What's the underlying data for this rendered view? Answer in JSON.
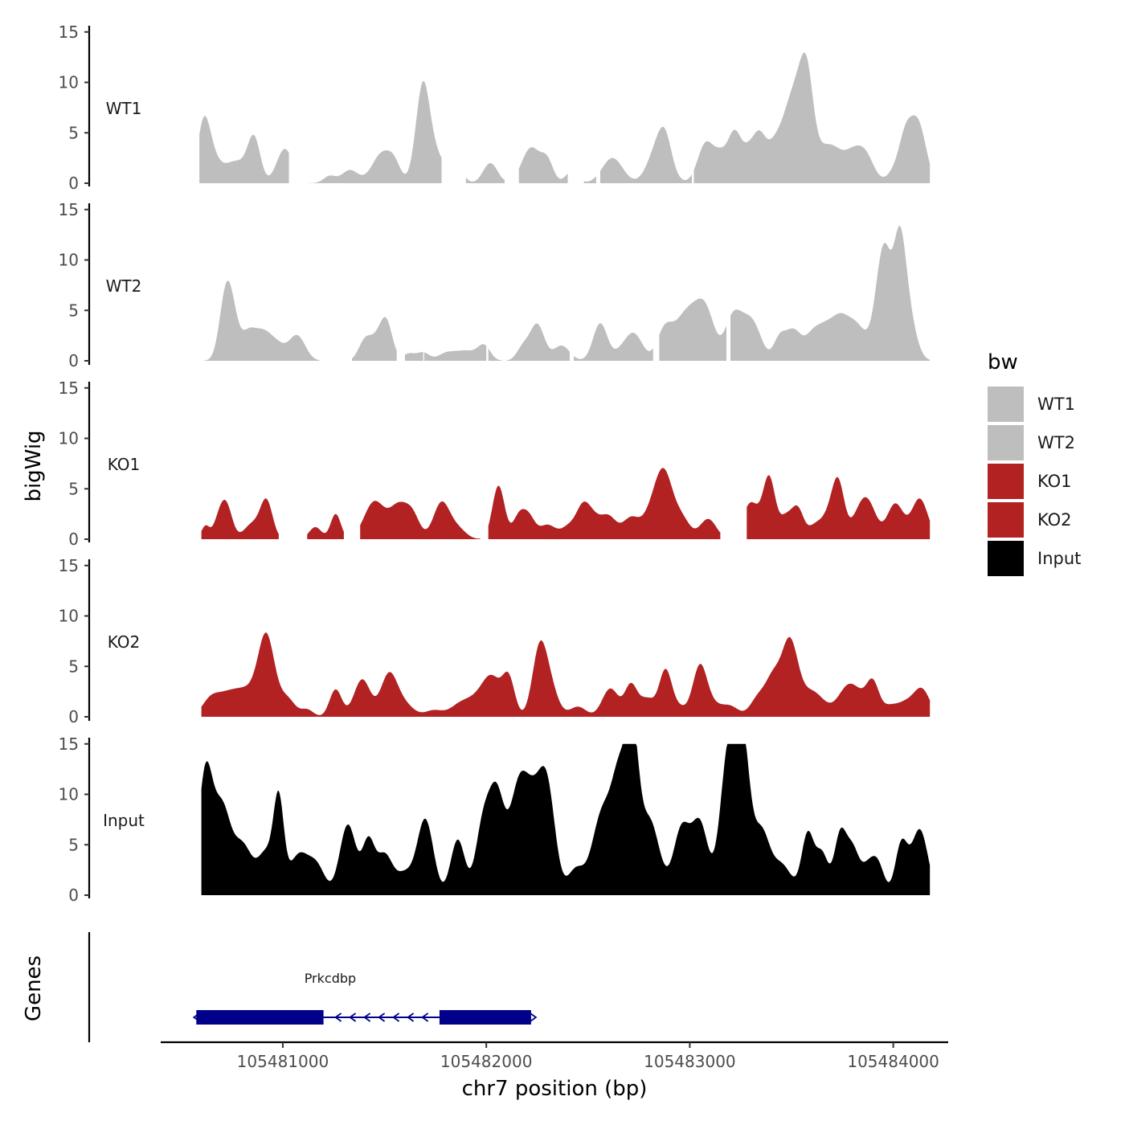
{
  "chart_data": {
    "type": "area",
    "xlabel": "chr7 position (bp)",
    "ylabel": "bigWig",
    "genes_label": "Genes",
    "xlim": [
      105480400,
      105484270
    ],
    "ylim": [
      0,
      15
    ],
    "x_ticks": [
      105481000,
      105482000,
      105483000,
      105484000
    ],
    "x_tick_labels": [
      "105481000",
      "105482000",
      "105483000",
      "105484000"
    ],
    "y_ticks": [
      0,
      5,
      10,
      15
    ],
    "y_tick_labels": [
      "0",
      "5",
      "10",
      "15"
    ],
    "legend": {
      "title": "bw",
      "items": [
        {
          "label": "WT1",
          "color": "#bebebe"
        },
        {
          "label": "WT2",
          "color": "#bebebe"
        },
        {
          "label": "KO1",
          "color": "#b22222"
        },
        {
          "label": "KO2",
          "color": "#b22222"
        },
        {
          "label": "Input",
          "color": "#000000"
        }
      ]
    },
    "series": [
      {
        "name": "WT1",
        "color": "#bebebe",
        "x_start": 105480590,
        "x_end": 105484180,
        "peaks": [
          [
            105480610,
            5,
            30
          ],
          [
            105480650,
            2.5,
            40
          ],
          [
            105480760,
            2,
            50
          ],
          [
            105480840,
            1,
            40
          ],
          [
            105480860,
            3.6,
            30
          ],
          [
            105481010,
            3.4,
            40
          ],
          [
            105481230,
            0.7,
            30
          ],
          [
            105481330,
            1.3,
            40
          ],
          [
            105481490,
            3,
            50
          ],
          [
            105481550,
            1.2,
            30
          ],
          [
            105481690,
            10,
            35
          ],
          [
            105481760,
            2,
            30
          ],
          [
            105481840,
            2.5,
            35
          ],
          [
            105482020,
            2,
            35
          ],
          [
            105482220,
            3.5,
            45
          ],
          [
            105482300,
            2,
            30
          ],
          [
            105482420,
            1.2,
            30
          ],
          [
            105482620,
            2.5,
            50
          ],
          [
            105482850,
            4,
            50
          ],
          [
            105482880,
            2,
            30
          ],
          [
            105483080,
            4,
            40
          ],
          [
            105483150,
            2,
            30
          ],
          [
            105483220,
            5,
            35
          ],
          [
            105483290,
            2.5,
            30
          ],
          [
            105483340,
            3.5,
            30
          ],
          [
            105483420,
            4,
            50
          ],
          [
            105483500,
            6,
            40
          ],
          [
            105483550,
            5.5,
            35
          ],
          [
            105483580,
            6,
            30
          ],
          [
            105483640,
            3,
            50
          ],
          [
            105483710,
            2,
            40
          ],
          [
            105483800,
            3,
            50
          ],
          [
            105483870,
            2,
            40
          ],
          [
            105484020,
            1.5,
            40
          ],
          [
            105484060,
            3,
            30
          ],
          [
            105484120,
            6,
            40
          ]
        ],
        "gaps": [
          [
            105481030,
            105481130
          ],
          [
            105481780,
            105481900
          ],
          [
            105482090,
            105482160
          ],
          [
            105482400,
            105482470
          ],
          [
            105482470,
            105482480
          ],
          [
            105482540,
            105482560
          ],
          [
            105483010,
            105483020
          ]
        ]
      },
      {
        "name": "WT2",
        "color": "#bebebe",
        "x_start": 105480600,
        "x_end": 105484180,
        "peaks": [
          [
            105480710,
            3,
            30
          ],
          [
            105480730,
            4,
            30
          ],
          [
            105480760,
            2.5,
            30
          ],
          [
            105480830,
            2.5,
            35
          ],
          [
            105480900,
            2.5,
            40
          ],
          [
            105480970,
            1.5,
            40
          ],
          [
            105481070,
            2.5,
            40
          ],
          [
            105481400,
            1.6,
            30
          ],
          [
            105481460,
            2,
            40
          ],
          [
            105481510,
            3.3,
            30
          ],
          [
            105481620,
            0.7,
            30
          ],
          [
            105481690,
            0.8,
            30
          ],
          [
            105481800,
            0.6,
            40
          ],
          [
            105481900,
            1,
            60
          ],
          [
            105481990,
            1.3,
            30
          ],
          [
            105482180,
            1.3,
            30
          ],
          [
            105482250,
            3.6,
            35
          ],
          [
            105482370,
            1.5,
            40
          ],
          [
            105482560,
            3.7,
            35
          ],
          [
            105482670,
            1,
            40
          ],
          [
            105482730,
            2.4,
            40
          ],
          [
            105482880,
            3.3,
            40
          ],
          [
            105482960,
            2.5,
            40
          ],
          [
            105483030,
            4.5,
            50
          ],
          [
            105483090,
            3,
            40
          ],
          [
            105483210,
            4,
            40
          ],
          [
            105483270,
            2.2,
            40
          ],
          [
            105483320,
            2.7,
            40
          ],
          [
            105483440,
            2,
            30
          ],
          [
            105483510,
            3,
            40
          ],
          [
            105483600,
            2,
            35
          ],
          [
            105483660,
            2.6,
            40
          ],
          [
            105483740,
            4,
            45
          ],
          [
            105483820,
            2.8,
            40
          ],
          [
            105483900,
            1.8,
            40
          ],
          [
            105483940,
            7,
            30
          ],
          [
            105483970,
            3.6,
            25
          ],
          [
            105484000,
            2.5,
            40
          ],
          [
            105484030,
            8.5,
            30
          ],
          [
            105484070,
            4.5,
            40
          ]
        ],
        "gaps": [
          [
            105481180,
            105481340
          ],
          [
            105481560,
            105481600
          ],
          [
            105481690,
            105481695
          ],
          [
            105482000,
            105482010
          ],
          [
            105482080,
            105482100
          ],
          [
            105482410,
            105482430
          ],
          [
            105482820,
            105482850
          ],
          [
            105483180,
            105483200
          ]
        ]
      },
      {
        "name": "KO1",
        "color": "#b22222",
        "x_start": 105480600,
        "x_end": 105484180,
        "peaks": [
          [
            105480620,
            1.3,
            20
          ],
          [
            105480680,
            1.2,
            25
          ],
          [
            105480720,
            3.5,
            30
          ],
          [
            105480850,
            1.5,
            40
          ],
          [
            105480920,
            3.7,
            30
          ],
          [
            105481160,
            1.2,
            30
          ],
          [
            105481260,
            2.5,
            25
          ],
          [
            105481450,
            3.7,
            50
          ],
          [
            105481570,
            3.2,
            45
          ],
          [
            105481640,
            2,
            35
          ],
          [
            105481780,
            3.6,
            40
          ],
          [
            105481860,
            1,
            40
          ],
          [
            105482060,
            5.3,
            30
          ],
          [
            105482160,
            2.2,
            30
          ],
          [
            105482210,
            2,
            30
          ],
          [
            105482300,
            1.4,
            40
          ],
          [
            105482410,
            1.3,
            40
          ],
          [
            105482470,
            1.7,
            30
          ],
          [
            105482510,
            2.4,
            40
          ],
          [
            105482600,
            2.2,
            40
          ],
          [
            105482710,
            2,
            40
          ],
          [
            105482830,
            3.5,
            50
          ],
          [
            105482880,
            4.5,
            40
          ],
          [
            105482960,
            2,
            40
          ],
          [
            105483090,
            2,
            40
          ],
          [
            105483300,
            3.6,
            40
          ],
          [
            105483390,
            6,
            30
          ],
          [
            105483470,
            2,
            30
          ],
          [
            105483530,
            3,
            30
          ],
          [
            105483610,
            1,
            30
          ],
          [
            105483680,
            2.2,
            40
          ],
          [
            105483730,
            5,
            30
          ],
          [
            105483830,
            2,
            40
          ],
          [
            105483880,
            3,
            40
          ],
          [
            105484010,
            3.5,
            40
          ],
          [
            105484130,
            4,
            40
          ]
        ],
        "gaps": [
          [
            105480980,
            105481120
          ],
          [
            105481300,
            105481380
          ],
          [
            105481970,
            105482010
          ],
          [
            105483150,
            105483280
          ]
        ]
      },
      {
        "name": "KO2",
        "color": "#b22222",
        "x_start": 105480600,
        "x_end": 105484180,
        "peaks": [
          [
            105480640,
            1.2,
            40
          ],
          [
            105480720,
            2,
            60
          ],
          [
            105480830,
            2.3,
            60
          ],
          [
            105480920,
            7.5,
            40
          ],
          [
            105481020,
            1.8,
            40
          ],
          [
            105481120,
            0.7,
            30
          ],
          [
            105481260,
            2.7,
            30
          ],
          [
            105481390,
            3.7,
            40
          ],
          [
            105481520,
            3.9,
            40
          ],
          [
            105481590,
            1.3,
            50
          ],
          [
            105481740,
            0.6,
            40
          ],
          [
            105481890,
            1.5,
            60
          ],
          [
            105482000,
            2.4,
            50
          ],
          [
            105482040,
            2,
            40
          ],
          [
            105482110,
            3.7,
            30
          ],
          [
            105482260,
            6,
            35
          ],
          [
            105482310,
            3,
            40
          ],
          [
            105482450,
            1,
            40
          ],
          [
            105482610,
            2.8,
            40
          ],
          [
            105482710,
            3,
            30
          ],
          [
            105482790,
            1.8,
            40
          ],
          [
            105482880,
            4.3,
            30
          ],
          [
            105482940,
            1,
            40
          ],
          [
            105483050,
            5,
            35
          ],
          [
            105483120,
            1,
            40
          ],
          [
            105483200,
            1,
            40
          ],
          [
            105483340,
            2,
            40
          ],
          [
            105483410,
            3.3,
            35
          ],
          [
            105483490,
            7.2,
            40
          ],
          [
            105483600,
            2.5,
            60
          ],
          [
            105483780,
            3,
            50
          ],
          [
            105483850,
            1,
            40
          ],
          [
            105483900,
            3,
            30
          ],
          [
            105483980,
            1,
            40
          ],
          [
            105484060,
            1.2,
            40
          ],
          [
            105484140,
            2.7,
            40
          ]
        ],
        "gaps": []
      },
      {
        "name": "Input",
        "color": "#000000",
        "x_start": 105480600,
        "x_end": 105484180,
        "peaks": [
          [
            105480620,
            12,
            35
          ],
          [
            105480700,
            8,
            40
          ],
          [
            105480800,
            5,
            50
          ],
          [
            105480920,
            4,
            40
          ],
          [
            105480980,
            8.5,
            25
          ],
          [
            105481080,
            4,
            50
          ],
          [
            105481170,
            2.5,
            40
          ],
          [
            105481320,
            7,
            40
          ],
          [
            105481420,
            5,
            30
          ],
          [
            105481500,
            4,
            40
          ],
          [
            105481600,
            2,
            40
          ],
          [
            105481700,
            7.5,
            40
          ],
          [
            105481860,
            5.5,
            35
          ],
          [
            105481980,
            6,
            35
          ],
          [
            105482050,
            10,
            40
          ],
          [
            105482150,
            7.5,
            40
          ],
          [
            105482220,
            9,
            50
          ],
          [
            105482300,
            9.5,
            40
          ],
          [
            105482440,
            2.5,
            40
          ],
          [
            105482570,
            8,
            50
          ],
          [
            105482660,
            11,
            40
          ],
          [
            105482720,
            12,
            30
          ],
          [
            105482800,
            7.5,
            50
          ],
          [
            105482960,
            6.5,
            40
          ],
          [
            105483050,
            7,
            40
          ],
          [
            105483190,
            14,
            40
          ],
          [
            105483260,
            14,
            35
          ],
          [
            105483350,
            6,
            40
          ],
          [
            105483450,
            3,
            50
          ],
          [
            105483580,
            6,
            30
          ],
          [
            105483650,
            4,
            30
          ],
          [
            105483740,
            6,
            30
          ],
          [
            105483800,
            4,
            30
          ],
          [
            105483880,
            3,
            40
          ],
          [
            105483930,
            2,
            30
          ],
          [
            105484040,
            5,
            30
          ],
          [
            105484130,
            6.5,
            40
          ]
        ],
        "gaps": []
      }
    ],
    "genes": [
      {
        "name": "Prkcdbp",
        "strand": "-",
        "start": 105480575,
        "end": 105482220,
        "exons": [
          [
            105480575,
            105481200
          ],
          [
            105481770,
            105482220
          ]
        ]
      }
    ]
  }
}
